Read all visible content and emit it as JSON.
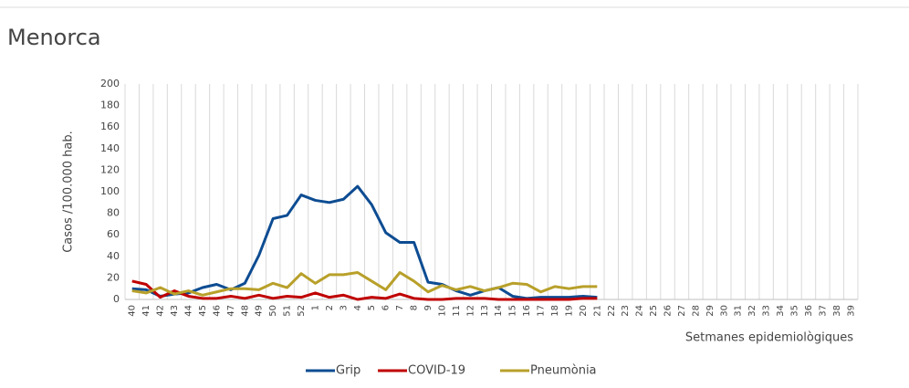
{
  "chart_data": {
    "type": "line",
    "title": "Menorca",
    "y_label": "Casos /100.000 hab.",
    "x_label": "Setmanes epidemiològiques",
    "categories": [
      "40",
      "41",
      "42",
      "43",
      "44",
      "45",
      "46",
      "47",
      "48",
      "49",
      "50",
      "51",
      "52",
      "1",
      "2",
      "3",
      "4",
      "5",
      "6",
      "7",
      "8",
      "9",
      "10",
      "11",
      "12",
      "13",
      "14",
      "15",
      "16",
      "17",
      "18",
      "19",
      "20",
      "21",
      "22",
      "23",
      "24",
      "25",
      "26",
      "27",
      "28",
      "29",
      "30",
      "31",
      "32",
      "33",
      "34",
      "35",
      "36",
      "37",
      "38",
      "39"
    ],
    "series": [
      {
        "name": "Grip",
        "color": "#0d4c92",
        "values": [
          10,
          9,
          3,
          5,
          6,
          11,
          14,
          9,
          15,
          41,
          75,
          78,
          97,
          92,
          90,
          93,
          105,
          88,
          62,
          53,
          53,
          16,
          14,
          8,
          4,
          8,
          11,
          3,
          1,
          2,
          2,
          2,
          3,
          2,
          null,
          null,
          null,
          null,
          null,
          null,
          null,
          null,
          null,
          null,
          null,
          null,
          null,
          null,
          null,
          null,
          null,
          null
        ]
      },
      {
        "name": "COVID-19",
        "color": "#c00000",
        "values": [
          17,
          14,
          2,
          8,
          3,
          1,
          1,
          3,
          1,
          4,
          1,
          3,
          2,
          6,
          2,
          4,
          0,
          2,
          1,
          5,
          1,
          0,
          0,
          1,
          1,
          1,
          0,
          0,
          0,
          0,
          0,
          0,
          1,
          1,
          null,
          null,
          null,
          null,
          null,
          null,
          null,
          null,
          null,
          null,
          null,
          null,
          null,
          null,
          null,
          null,
          null,
          null
        ]
      },
      {
        "name": "Pneumònia",
        "color": "#b8a02a",
        "values": [
          8,
          6,
          11,
          5,
          8,
          4,
          7,
          10,
          10,
          9,
          15,
          11,
          24,
          15,
          23,
          23,
          25,
          17,
          9,
          25,
          17,
          7,
          13,
          9,
          12,
          8,
          11,
          15,
          14,
          7,
          12,
          10,
          12,
          12,
          null,
          null,
          null,
          null,
          null,
          null,
          null,
          null,
          null,
          null,
          null,
          null,
          null,
          null,
          null,
          null,
          null,
          null
        ]
      }
    ],
    "ylim": [
      0,
      200
    ],
    "yticks": [
      0,
      20,
      40,
      60,
      80,
      100,
      120,
      140,
      160,
      180,
      200
    ],
    "grid": true,
    "legend": "bottom"
  }
}
